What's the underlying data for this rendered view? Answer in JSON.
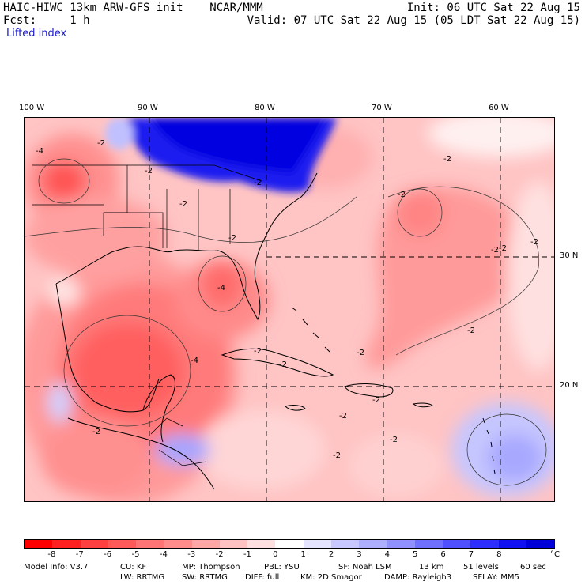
{
  "header": {
    "line1_left": "HAIC-HIWC 13km ARW-GFS init    NCAR/MMM",
    "line1_right": "Init: 06 UTC Sat 22 Aug 15",
    "line2_left": "Fcst:     1 h",
    "line2_right": "Valid: 07 UTC Sat 22 Aug 15 (05 LDT Sat 22 Aug 15)",
    "field_name": "Lifted index"
  },
  "map": {
    "lon_ticks": [
      "100 W",
      "90 W",
      "80 W",
      "70 W",
      "60 W"
    ],
    "lat_ticks": [
      "30 N",
      "20 N"
    ],
    "contour_labels": [
      "-4",
      "-2",
      "-2",
      "-2",
      "-2",
      "-4",
      "-2",
      "-2",
      "-4",
      "-2",
      "-2",
      "-2",
      "-2",
      "-2",
      "-2",
      "-2",
      "-2",
      "-2",
      "-2",
      "-2",
      "-2",
      "-2"
    ]
  },
  "colorbar": {
    "unit": "°C",
    "labels": [
      "-8",
      "-7",
      "-6",
      "-5",
      "-4",
      "-3",
      "-2",
      "-1",
      "0",
      "1",
      "2",
      "3",
      "4",
      "5",
      "6",
      "7",
      "8"
    ],
    "colors": [
      "#ff0000",
      "#ff2020",
      "#ff4040",
      "#ff5a5a",
      "#ff7474",
      "#ff8c8c",
      "#ffa6a6",
      "#ffc2c2",
      "#ffe0e0",
      "#ffffff",
      "#e4e4ff",
      "#c8c8ff",
      "#aeaeff",
      "#9090ff",
      "#7070ff",
      "#5050ff",
      "#2e2eff",
      "#1010f0",
      "#0000d8"
    ]
  },
  "footer": {
    "line1": [
      "Model Info: V3.7",
      "CU: KF",
      "MP: Thompson",
      "PBL: YSU",
      "SF: Noah LSM",
      "13 km",
      "51 levels",
      "60 sec"
    ],
    "line2": [
      "LW: RRTMG",
      "SW: RRTMG",
      "DIFF: full",
      "KM: 2D Smagor",
      "DAMP: Rayleigh3",
      "SFLAY: MM5"
    ]
  }
}
